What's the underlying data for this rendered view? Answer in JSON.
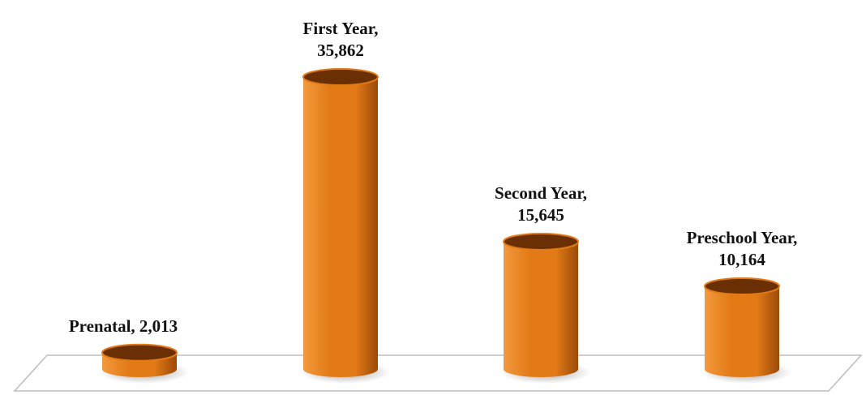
{
  "chart_data": {
    "type": "bar",
    "style": "3d-cylinder",
    "categories": [
      "Prenatal",
      "First Year",
      "Second Year",
      "Preschool Year"
    ],
    "values": [
      2013,
      35862,
      15645,
      10164
    ],
    "data_labels": [
      [
        "Prenatal, 2,013"
      ],
      [
        "First Year,",
        "35,862"
      ],
      [
        "Second Year,",
        "15,645"
      ],
      [
        "Preschool Year,",
        "10,164"
      ]
    ],
    "title": "",
    "xlabel": "",
    "ylabel": "",
    "ylim": [
      0,
      36000
    ],
    "grid": false,
    "legend": "none",
    "colors": {
      "bar_light": "#f39a3e",
      "bar_mid": "#e27a16",
      "bar_dark": "#9a4a08",
      "bar_top": "#6a2f05",
      "floor_fill": "#ffffff",
      "floor_stroke": "#bdbdbd",
      "label": "#111111"
    }
  }
}
